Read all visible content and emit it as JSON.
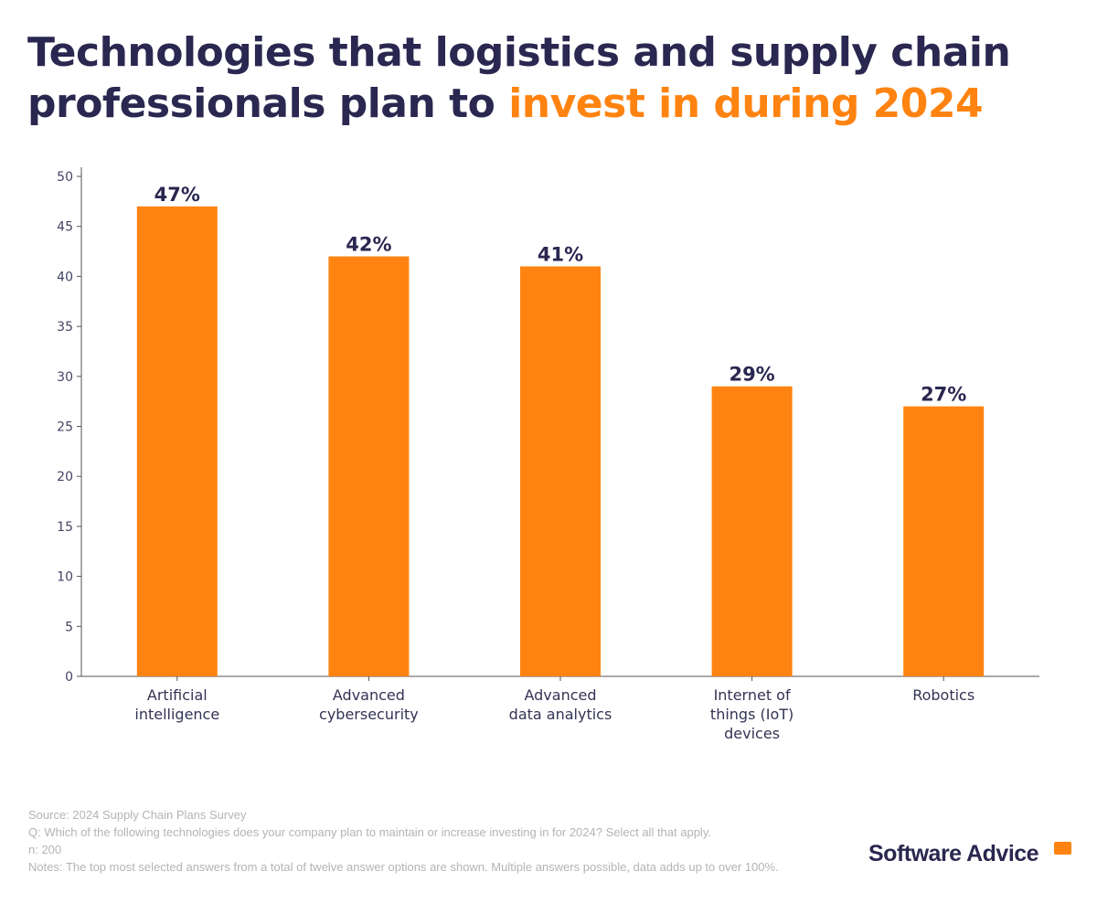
{
  "title": {
    "part1": "Technologies that logistics and supply chain professionals plan to ",
    "highlight": "invest in during 2024"
  },
  "colors": {
    "bar": "#ff8310",
    "title": "#2a2750",
    "highlight": "#ff8310",
    "axis": "#555555"
  },
  "chart_data": {
    "type": "bar",
    "categories": [
      [
        "Artificial",
        "intelligence"
      ],
      [
        "Advanced",
        "cybersecurity"
      ],
      [
        "Advanced",
        "data analytics"
      ],
      [
        "Internet of",
        "things (IoT)",
        "devices"
      ],
      [
        "Robotics"
      ]
    ],
    "values": [
      47,
      42,
      41,
      29,
      27
    ],
    "data_labels": [
      "47%",
      "42%",
      "41%",
      "29%",
      "27%"
    ],
    "yticks": [
      "0",
      "5",
      "10",
      "15",
      "20",
      "25",
      "30",
      "35",
      "40",
      "45",
      "50"
    ],
    "ylim": [
      0,
      50
    ],
    "grid": false
  },
  "footer": {
    "source": "Source: 2024 Supply Chain Plans Survey",
    "question": "Q: Which of the following technologies does your company plan to maintain or increase investing in for 2024? Select all that apply.",
    "n": "n: 200",
    "notes": "Notes: The top most selected answers from a total of twelve answer options are shown. Multiple answers possible, data adds up to over 100%."
  },
  "logo": "Software Advice"
}
